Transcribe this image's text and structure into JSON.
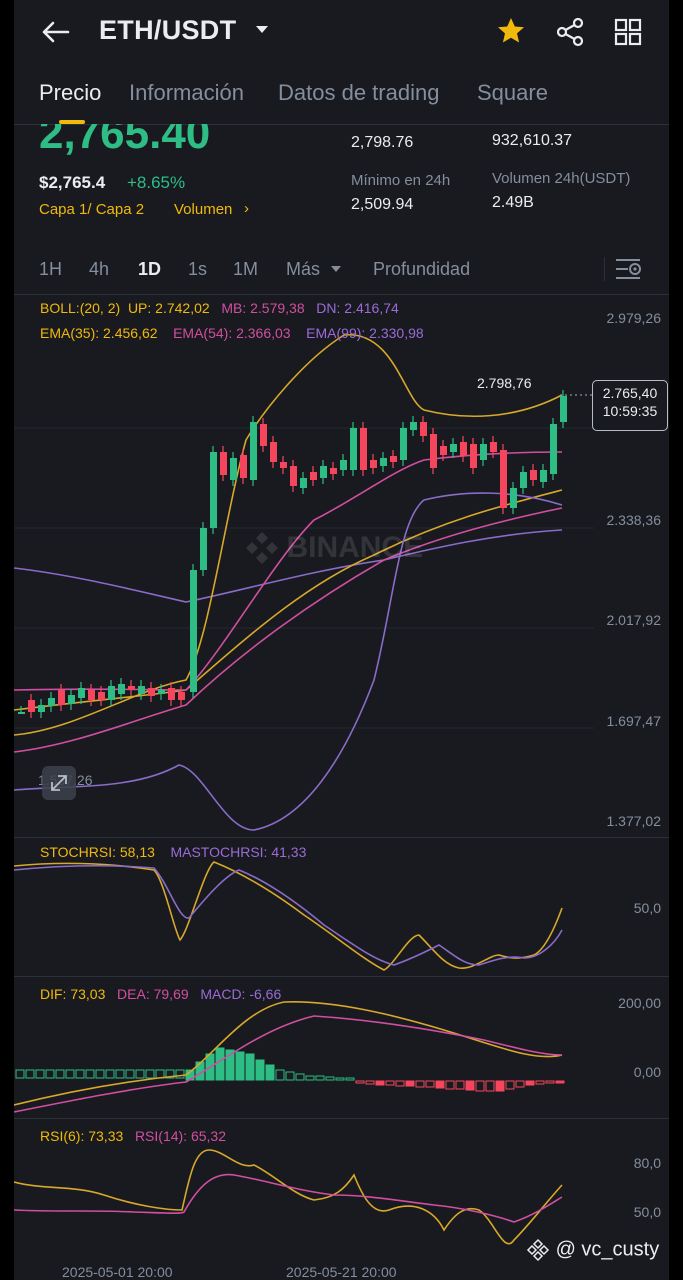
{
  "header": {
    "title": "ETH/USDT",
    "icons": [
      "back-arrow-icon",
      "dropdown-caret-icon",
      "star-icon",
      "share-icon",
      "grid-icon"
    ]
  },
  "tabs": [
    "Precio",
    "Información",
    "Datos de trading",
    "Square"
  ],
  "price": {
    "last": "2,765.40",
    "usd": "$2,765.4",
    "change": "+8.65%",
    "high_value": "2,798.76",
    "low_label": "Mínimo en 24h",
    "low_value": "2,509.94",
    "vol_value": "932,610.37",
    "vol_label": "Volumen 24h(USDT)",
    "vol_usdt": "2.49B",
    "layers": "Capa 1/ Capa 2",
    "volume_link": "Volumen"
  },
  "timeframes": [
    "1H",
    "4h",
    "1D",
    "1s",
    "1M",
    "Más",
    "Profundidad"
  ],
  "chart": {
    "boll": "BOLL:(20, 2)",
    "up": "UP: 2.742,02",
    "mb": "MB: 2.579,38",
    "dn": "DN: 2.416,74",
    "ema35": "EMA(35): 2.456,62",
    "ema54": "EMA(54): 2.366,03",
    "ema99": "EMA(99): 2.330,98",
    "y_ticks": [
      "2.979,26",
      "2.338,36",
      "2.017,92",
      "1.697,47",
      "1.377,02"
    ],
    "high_marker": "2.798,76",
    "price_tag": "2.765,40",
    "countdown": "10:59:35",
    "low_marker": "1.537,26",
    "watermark": "BINANCE"
  },
  "stochrsi": {
    "label": "STOCHRSI: 58,13",
    "ma": "MASTOCHRSI: 41,33",
    "tick": "50,0"
  },
  "macd": {
    "dif": "DIF: 73,03",
    "dea": "DEA: 79,69",
    "macd": "MACD: -6,66",
    "ticks": [
      "200,00",
      "0,00"
    ]
  },
  "rsi": {
    "rsi6": "RSI(6): 73,33",
    "rsi14": "RSI(14): 65,32",
    "ticks": [
      "80,0",
      "50,0"
    ]
  },
  "x_axis": [
    "2025-05-01 20:00",
    "2025-05-21 20:00"
  ],
  "watermark_user": "@ vc_custy",
  "colors": {
    "up": "#2ebd85",
    "down": "#f6465d",
    "gold": "#f0b90b",
    "bg": "#181a20"
  }
}
